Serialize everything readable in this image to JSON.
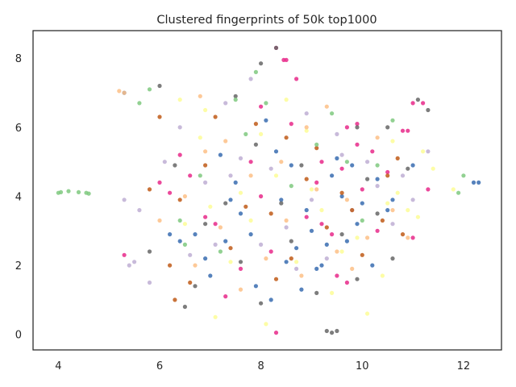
{
  "chart_data": {
    "type": "scatter",
    "title": "Clustered fingerprints of 50k top1000",
    "xlabel": "",
    "ylabel": "",
    "xlim": [
      3.5,
      12.75
    ],
    "ylim": [
      -0.45,
      8.8
    ],
    "x_ticks": [
      4,
      6,
      8,
      10,
      12
    ],
    "y_ticks": [
      0,
      2,
      4,
      6,
      8
    ],
    "x_tick_labels": [
      "4",
      "6",
      "8",
      "10",
      "12"
    ],
    "y_tick_labels": [
      "0",
      "2",
      "4",
      "6",
      "8"
    ],
    "grid": false,
    "legend": "none",
    "palette": [
      "#386cb0",
      "#e7298a",
      "#fdfd96",
      "#beaed4",
      "#666666",
      "#bf5b17",
      "#fdc086",
      "#7fc97f"
    ],
    "series": [
      {
        "color": "#386cb0",
        "points": [
          [
            8.6,
            4.9
          ],
          [
            7.2,
            5.2
          ],
          [
            9.4,
            4.6
          ],
          [
            7.6,
            3.5
          ],
          [
            8.7,
            2.5
          ],
          [
            9.1,
            1.9
          ],
          [
            10.0,
            3.8
          ],
          [
            7.9,
            1.4
          ],
          [
            10.3,
            4.5
          ],
          [
            7.4,
            3.9
          ],
          [
            6.7,
            2.9
          ],
          [
            9.3,
            2.6
          ],
          [
            8.2,
            1.0
          ],
          [
            6.2,
            2.9
          ],
          [
            9.8,
            4.9
          ],
          [
            7.0,
            1.7
          ],
          [
            10.6,
            3.9
          ],
          [
            8.5,
            2.1
          ],
          [
            9.7,
            2.7
          ],
          [
            7.5,
            4.4
          ],
          [
            9.0,
            3.0
          ],
          [
            8.1,
            6.2
          ],
          [
            11.0,
            4.9
          ],
          [
            8.4,
            3.9
          ],
          [
            10.2,
            2.0
          ],
          [
            12.3,
            4.4
          ],
          [
            12.2,
            4.4
          ],
          [
            5.3,
            7.0
          ],
          [
            9.5,
            5.1
          ],
          [
            6.9,
            2.2
          ],
          [
            8.8,
            1.3
          ],
          [
            9.9,
            3.2
          ],
          [
            7.3,
            2.7
          ],
          [
            8.3,
            5.3
          ],
          [
            10.5,
            3.6
          ],
          [
            9.2,
            2.0
          ],
          [
            7.8,
            2.9
          ],
          [
            6.4,
            2.7
          ],
          [
            8.9,
            3.6
          ],
          [
            9.6,
            4.0
          ]
        ]
      },
      {
        "color": "#e7298a",
        "points": [
          [
            8.45,
            7.95
          ],
          [
            8.5,
            7.95
          ],
          [
            8.3,
            8.3
          ],
          [
            9.9,
            6.1
          ],
          [
            11.0,
            6.7
          ],
          [
            10.8,
            5.9
          ],
          [
            6.0,
            4.4
          ],
          [
            7.1,
            3.2
          ],
          [
            8.6,
            6.1
          ],
          [
            9.2,
            3.2
          ],
          [
            9.9,
            5.5
          ],
          [
            9.7,
            1.5
          ],
          [
            10.0,
            4.2
          ],
          [
            5.3,
            2.3
          ],
          [
            6.6,
            4.6
          ],
          [
            8.0,
            4.0
          ],
          [
            9.1,
            4.4
          ],
          [
            10.2,
            5.3
          ],
          [
            11.0,
            2.8
          ],
          [
            7.3,
            1.1
          ],
          [
            8.3,
            0.05
          ],
          [
            9.7,
            6.0
          ],
          [
            11.3,
            4.2
          ],
          [
            8.7,
            7.4
          ],
          [
            6.9,
            3.4
          ],
          [
            9.4,
            2.9
          ],
          [
            10.5,
            4.7
          ],
          [
            8.2,
            2.4
          ],
          [
            7.8,
            5.0
          ],
          [
            9.5,
            1.7
          ],
          [
            10.9,
            5.9
          ],
          [
            6.4,
            5.2
          ],
          [
            8.9,
            3.4
          ],
          [
            9.6,
            4.8
          ],
          [
            10.3,
            3.0
          ],
          [
            7.6,
            1.9
          ],
          [
            11.2,
            6.7
          ],
          [
            8.0,
            6.6
          ],
          [
            6.2,
            4.1
          ],
          [
            9.2,
            5.0
          ]
        ]
      },
      {
        "color": "#fdfd96",
        "points": [
          [
            10.7,
            4.1
          ],
          [
            10.5,
            3.8
          ],
          [
            11.1,
            3.4
          ],
          [
            7.6,
            4.1
          ],
          [
            9.2,
            3.6
          ],
          [
            8.5,
            6.8
          ],
          [
            6.4,
            6.8
          ],
          [
            10.1,
            0.6
          ],
          [
            7.1,
            0.5
          ],
          [
            8.7,
            2.1
          ],
          [
            11.8,
            4.2
          ],
          [
            6.8,
            5.7
          ],
          [
            9.6,
            2.4
          ],
          [
            7.4,
            2.1
          ],
          [
            10.9,
            3.6
          ],
          [
            8.3,
            4.6
          ],
          [
            9.9,
            2.8
          ],
          [
            11.2,
            5.3
          ],
          [
            7.0,
            3.7
          ],
          [
            8.9,
            5.9
          ],
          [
            6.5,
            3.2
          ],
          [
            10.4,
            1.7
          ],
          [
            11.4,
            4.8
          ],
          [
            7.8,
            3.3
          ],
          [
            9.4,
            1.2
          ],
          [
            8.1,
            0.3
          ],
          [
            10.6,
            5.6
          ],
          [
            6.9,
            6.5
          ],
          [
            9.0,
            4.2
          ],
          [
            8.0,
            5.8
          ]
        ]
      },
      {
        "color": "#beaed4",
        "points": [
          [
            5.3,
            3.9
          ],
          [
            5.4,
            2.0
          ],
          [
            5.8,
            1.5
          ],
          [
            6.9,
            4.4
          ],
          [
            8.7,
            1.9
          ],
          [
            10.6,
            3.2
          ],
          [
            9.0,
            3.9
          ],
          [
            7.6,
            5.1
          ],
          [
            8.2,
            4.8
          ],
          [
            10.3,
            4.3
          ],
          [
            6.4,
            6.0
          ],
          [
            7.3,
            6.7
          ],
          [
            9.5,
            5.8
          ],
          [
            11.3,
            5.3
          ],
          [
            5.6,
            3.6
          ],
          [
            8.9,
            6.4
          ],
          [
            10.1,
            5.0
          ],
          [
            7.1,
            2.6
          ],
          [
            8.5,
            3.1
          ],
          [
            9.8,
            3.6
          ],
          [
            6.1,
            5.0
          ],
          [
            7.8,
            7.4
          ],
          [
            10.8,
            4.6
          ],
          [
            6.6,
            2.3
          ],
          [
            9.3,
            2.2
          ],
          [
            5.5,
            2.1
          ],
          [
            8.0,
            2.6
          ],
          [
            11.0,
            3.9
          ],
          [
            7.4,
            4.6
          ],
          [
            9.6,
            5.2
          ]
        ]
      },
      {
        "color": "#666666",
        "points": [
          [
            9.3,
            0.1
          ],
          [
            9.4,
            0.05
          ],
          [
            9.5,
            0.1
          ],
          [
            6.0,
            7.2
          ],
          [
            11.1,
            6.8
          ],
          [
            11.3,
            6.5
          ],
          [
            8.0,
            7.85
          ],
          [
            8.3,
            8.3
          ],
          [
            10.5,
            6.0
          ],
          [
            9.9,
            6.0
          ],
          [
            7.5,
            6.9
          ],
          [
            10.9,
            4.8
          ],
          [
            8.4,
            3.8
          ],
          [
            6.7,
            1.4
          ],
          [
            7.3,
            3.8
          ],
          [
            9.6,
            2.9
          ],
          [
            10.3,
            3.5
          ],
          [
            6.5,
            0.8
          ],
          [
            8.0,
            0.9
          ],
          [
            9.1,
            1.2
          ],
          [
            10.6,
            2.2
          ],
          [
            7.9,
            5.5
          ],
          [
            8.8,
            4.9
          ],
          [
            6.3,
            4.9
          ],
          [
            10.1,
            4.5
          ],
          [
            5.8,
            2.4
          ],
          [
            8.6,
            2.7
          ],
          [
            9.9,
            1.6
          ],
          [
            7.6,
            2.1
          ],
          [
            6.9,
            3.2
          ]
        ]
      },
      {
        "color": "#bf5b17",
        "points": [
          [
            6.3,
            1.0
          ],
          [
            6.6,
            1.5
          ],
          [
            8.3,
            1.6
          ],
          [
            10.4,
            3.3
          ],
          [
            8.5,
            5.7
          ],
          [
            10.8,
            2.9
          ],
          [
            6.0,
            6.3
          ],
          [
            9.3,
            3.1
          ],
          [
            7.7,
            3.7
          ],
          [
            8.9,
            4.5
          ],
          [
            10.0,
            2.3
          ],
          [
            6.4,
            3.9
          ],
          [
            7.1,
            6.3
          ],
          [
            9.6,
            4.1
          ],
          [
            8.2,
            3.5
          ],
          [
            5.8,
            4.2
          ],
          [
            10.7,
            5.1
          ],
          [
            7.4,
            2.5
          ],
          [
            9.1,
            5.4
          ],
          [
            6.9,
            4.9
          ],
          [
            8.6,
            2.2
          ],
          [
            9.8,
            3.6
          ],
          [
            7.9,
            6.1
          ],
          [
            6.2,
            2.0
          ],
          [
            10.5,
            4.6
          ]
        ]
      },
      {
        "color": "#fdc086",
        "points": [
          [
            7.3,
            5.6
          ],
          [
            6.7,
            2.0
          ],
          [
            8.5,
            3.3
          ],
          [
            9.3,
            6.6
          ],
          [
            10.9,
            2.8
          ],
          [
            5.2,
            7.05
          ],
          [
            5.3,
            7.0
          ],
          [
            6.9,
            5.3
          ],
          [
            8.1,
            2.2
          ],
          [
            9.7,
            3.9
          ],
          [
            7.8,
            4.6
          ],
          [
            10.3,
            5.7
          ],
          [
            6.5,
            4.0
          ],
          [
            8.8,
            1.7
          ],
          [
            9.5,
            2.4
          ],
          [
            7.2,
            3.1
          ],
          [
            10.6,
            3.6
          ],
          [
            6.0,
            3.3
          ],
          [
            8.4,
            5.0
          ],
          [
            9.1,
            4.2
          ],
          [
            7.6,
            1.3
          ],
          [
            10.1,
            2.8
          ],
          [
            8.9,
            6.0
          ],
          [
            6.8,
            6.9
          ],
          [
            9.8,
            1.9
          ]
        ]
      },
      {
        "color": "#7fc97f",
        "points": [
          [
            4.0,
            4.1
          ],
          [
            4.05,
            4.12
          ],
          [
            4.2,
            4.15
          ],
          [
            4.4,
            4.12
          ],
          [
            4.55,
            4.1
          ],
          [
            4.6,
            4.08
          ],
          [
            5.8,
            7.1
          ],
          [
            5.6,
            6.7
          ],
          [
            7.9,
            7.6
          ],
          [
            7.5,
            6.8
          ],
          [
            9.1,
            5.5
          ],
          [
            6.4,
            3.3
          ],
          [
            7.2,
            2.4
          ],
          [
            9.7,
            5.0
          ],
          [
            10.6,
            6.2
          ],
          [
            12.0,
            4.6
          ],
          [
            11.9,
            4.1
          ],
          [
            8.6,
            4.3
          ],
          [
            6.8,
            4.6
          ],
          [
            10.3,
            4.9
          ],
          [
            7.7,
            5.8
          ],
          [
            9.4,
            6.4
          ],
          [
            8.1,
            6.7
          ],
          [
            6.5,
            2.6
          ],
          [
            10.0,
            3.3
          ]
        ]
      }
    ]
  }
}
